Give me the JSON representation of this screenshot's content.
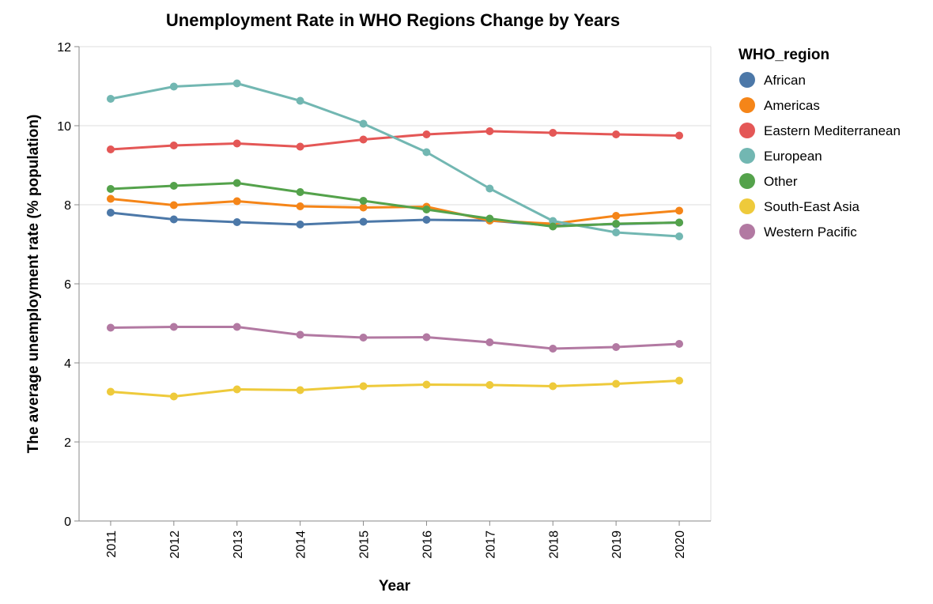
{
  "chart_data": {
    "type": "line",
    "title": "Unemployment Rate in WHO Regions Change by Years",
    "xlabel": "Year",
    "ylabel": "The average unemployment rate (% population)",
    "x": [
      "2011",
      "2012",
      "2013",
      "2014",
      "2015",
      "2016",
      "2017",
      "2018",
      "2019",
      "2020"
    ],
    "ylim": [
      0,
      12
    ],
    "yticks": [
      "0",
      "2",
      "4",
      "6",
      "8",
      "10",
      "12"
    ],
    "grid": true,
    "legend_title": "WHO_region",
    "legend_position": "right",
    "series": [
      {
        "name": "African",
        "color": "#4c78a8",
        "values": [
          7.8,
          7.63,
          7.56,
          7.5,
          7.57,
          7.62,
          7.6,
          7.47,
          7.51,
          7.55
        ]
      },
      {
        "name": "Americas",
        "color": "#f58518",
        "values": [
          8.15,
          7.99,
          8.09,
          7.96,
          7.93,
          7.95,
          7.6,
          7.52,
          7.72,
          7.85
        ]
      },
      {
        "name": "Eastern Mediterranean",
        "color": "#e45756",
        "values": [
          9.4,
          9.5,
          9.55,
          9.47,
          9.65,
          9.78,
          9.86,
          9.82,
          9.78,
          9.75
        ]
      },
      {
        "name": "European",
        "color": "#72b7b2",
        "values": [
          10.68,
          10.99,
          11.07,
          10.63,
          10.05,
          9.33,
          8.41,
          7.59,
          7.3,
          7.2
        ]
      },
      {
        "name": "Other",
        "color": "#54a24b",
        "values": [
          8.4,
          8.48,
          8.55,
          8.32,
          8.1,
          7.88,
          7.65,
          7.45,
          7.52,
          7.55
        ]
      },
      {
        "name": "South-East Asia",
        "color": "#eeca3b",
        "values": [
          3.27,
          3.15,
          3.33,
          3.31,
          3.41,
          3.45,
          3.44,
          3.41,
          3.47,
          3.55
        ]
      },
      {
        "name": "Western Pacific",
        "color": "#b279a2",
        "values": [
          4.89,
          4.91,
          4.91,
          4.71,
          4.64,
          4.65,
          4.52,
          4.36,
          4.4,
          4.48
        ]
      }
    ]
  }
}
